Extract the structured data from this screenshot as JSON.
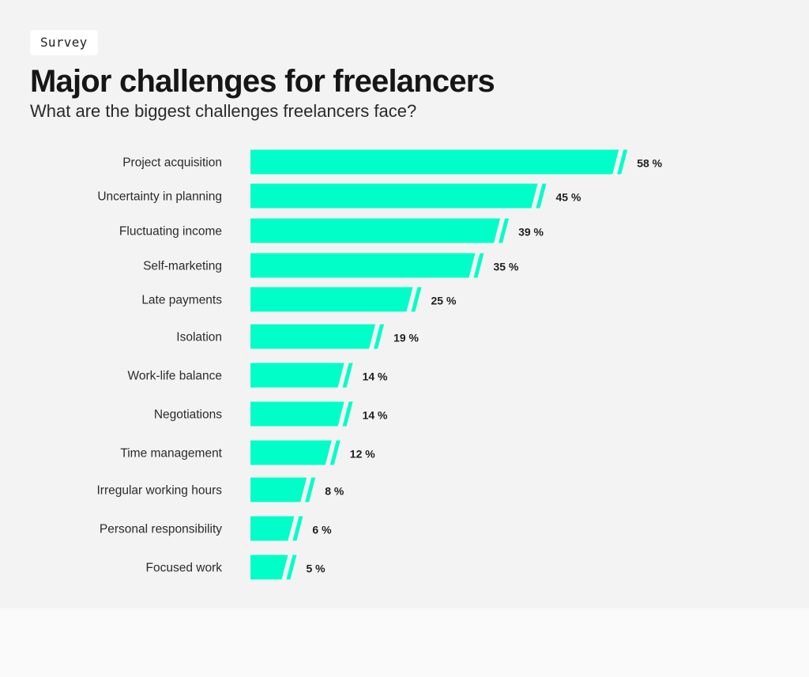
{
  "header": {
    "tag": "Survey",
    "title": "Major challenges for freelancers",
    "subtitle": "What are the biggest challenges freelancers face?"
  },
  "colors": {
    "bar": "#00ffc8",
    "background": "#f3f3f3",
    "footer": "#fafafa"
  },
  "chart_data": {
    "type": "bar",
    "orientation": "horizontal",
    "categories": [
      "Project acquisition",
      "Uncertainty in planning",
      "Fluctuating income",
      "Self-marketing",
      "Late payments",
      "Isolation",
      "Work-life balance",
      "Negotiations",
      "Time management",
      "Irregular working hours",
      "Personal responsibility",
      "Focused work"
    ],
    "values": [
      58,
      45,
      39,
      35,
      25,
      19,
      14,
      14,
      12,
      8,
      6,
      5
    ],
    "value_labels": [
      "58 %",
      "45 %",
      "39 %",
      "35 %",
      "25 %",
      "19 %",
      "14 %",
      "14 %",
      "12 %",
      "8 %",
      "6 %",
      "5 %"
    ],
    "unit": "%",
    "xlim": [
      0,
      58
    ],
    "grid": false,
    "legend": "none"
  }
}
